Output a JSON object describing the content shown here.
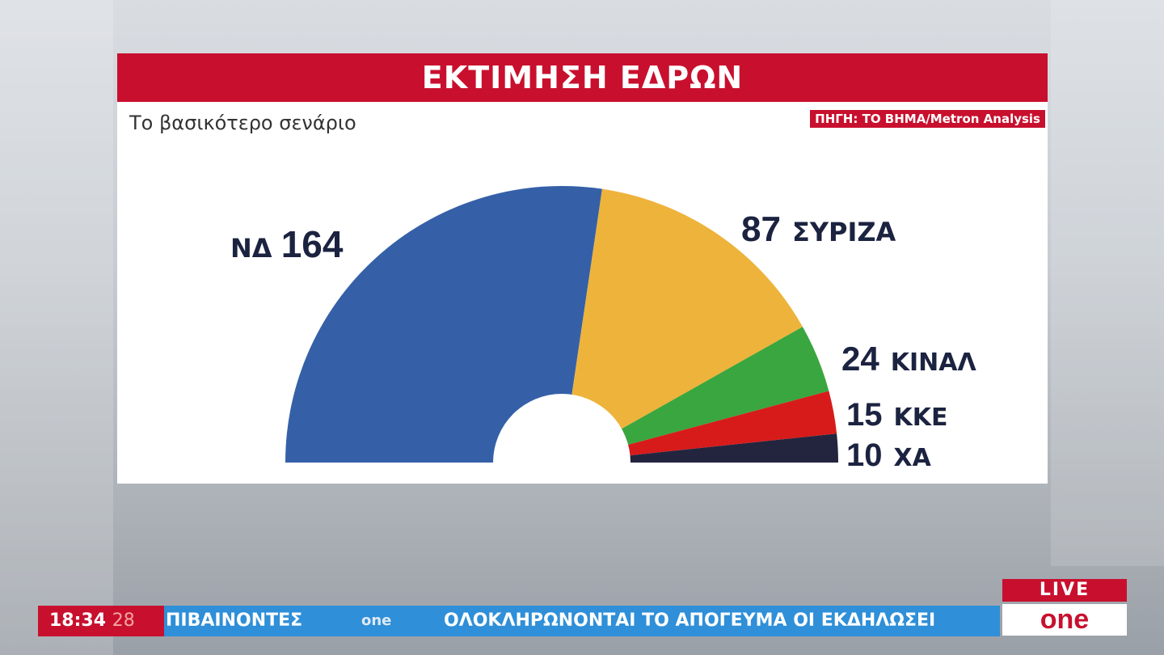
{
  "header": {
    "title": "ΕΚΤΙΜΗΣΗ ΕΔΡΩΝ",
    "subtitle": "Το βασικότερο σενάριο",
    "source": "ΠΗΓΗ: ΤΟ ΒΗΜΑ/Metron Analysis"
  },
  "chart_data": {
    "type": "pie",
    "subtype": "half-donut parliament",
    "title": "ΕΚΤΙΜΗΣΗ ΕΔΡΩΝ",
    "subtitle": "Το βασικότερο σενάριο",
    "total": 300,
    "categories": [
      "ΝΔ",
      "ΣΥΡΙΖΑ",
      "ΚΙΝΑΛ",
      "ΚΚΕ",
      "ΧΑ"
    ],
    "values": [
      164,
      87,
      24,
      15,
      10
    ],
    "colors": [
      "#3560a8",
      "#eeb33b",
      "#3aa63f",
      "#d71b1b",
      "#23253f"
    ]
  },
  "ticker": {
    "time": "18:34",
    "seconds": "28",
    "text_left": "ΠΙΒΑΙΝΟΝΤΕΣ",
    "logo": "one",
    "text_right": "ΟΛΟΚΛΗΡΩΝΟΝΤΑΙ ΤΟ ΑΠΟΓΕΥΜΑ  ΟΙ ΕΚΔΗΛΩΣΕΙ"
  },
  "live_badge": {
    "label": "LIVE",
    "logo": "one"
  }
}
